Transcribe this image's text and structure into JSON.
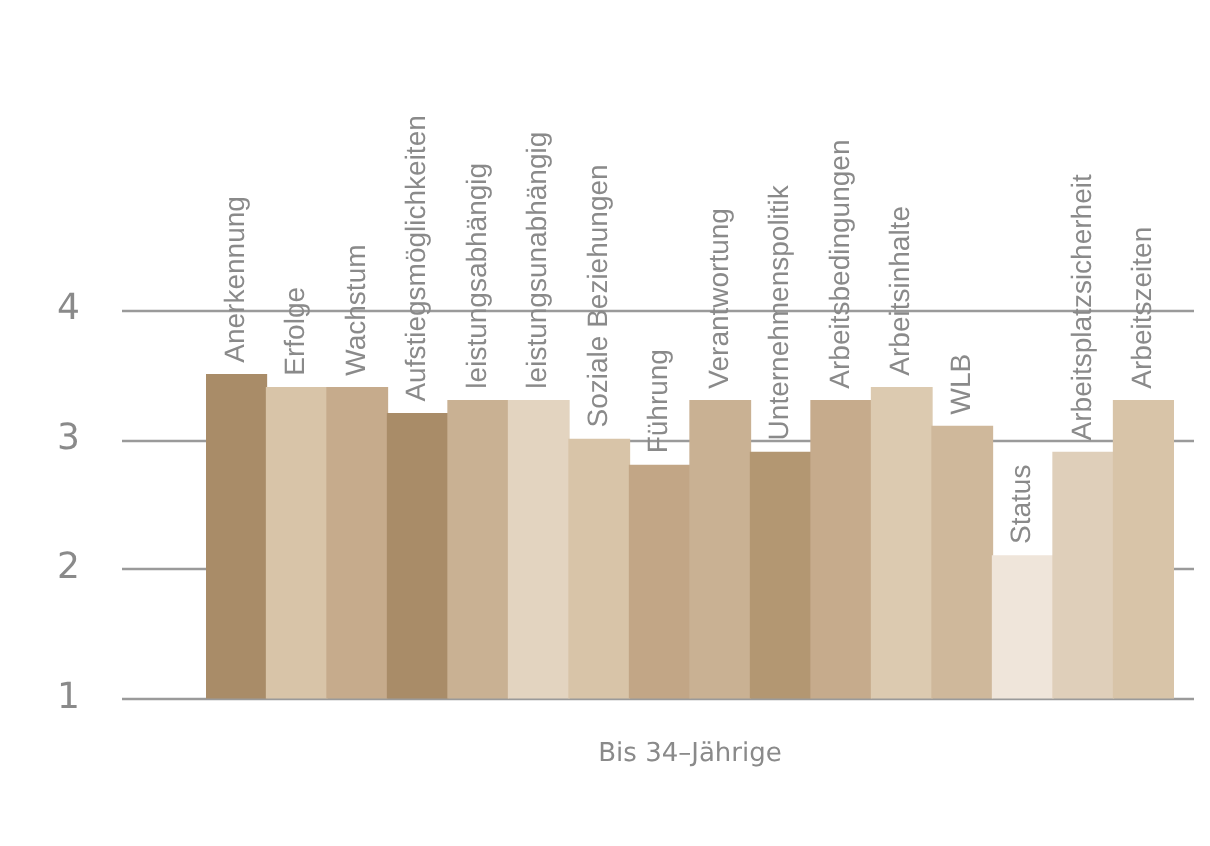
{
  "chart_data": {
    "type": "bar",
    "xlabel": "Bis 34–Jährige",
    "categories": [
      "Anerkennung",
      "Erfolge",
      "Wachstum",
      "Aufstiegsmöglichkeiten",
      "leistungsabhängig",
      "leistungsunabhängig",
      "Soziale Beziehungen",
      "Führung",
      "Verantwortung",
      "Unternehmenspolitik",
      "Arbeitsbedingungen",
      "Arbeitsinhalte",
      "WLB",
      "Status",
      "Arbeitsplatzsicherheit",
      "Arbeitszeiten"
    ],
    "values": [
      3.5,
      3.4,
      3.4,
      3.2,
      3.3,
      3.3,
      3.0,
      2.8,
      3.3,
      2.9,
      3.3,
      3.4,
      3.1,
      2.1,
      2.9,
      3.3
    ],
    "colors": [
      "#a98c68",
      "#d8c4a8",
      "#c6ab8c",
      "#a98c68",
      "#c9b193",
      "#e3d4c0",
      "#d8c4a8",
      "#c2a686",
      "#c9b193",
      "#b39772",
      "#c6ab8c",
      "#dccab0",
      "#cfb89b",
      "#efe5da",
      "#dfcfba",
      "#d8c4a8"
    ],
    "ylim": [
      1,
      4
    ],
    "yticks": [
      1,
      2,
      3,
      4
    ],
    "grid": "y",
    "legend": false
  }
}
